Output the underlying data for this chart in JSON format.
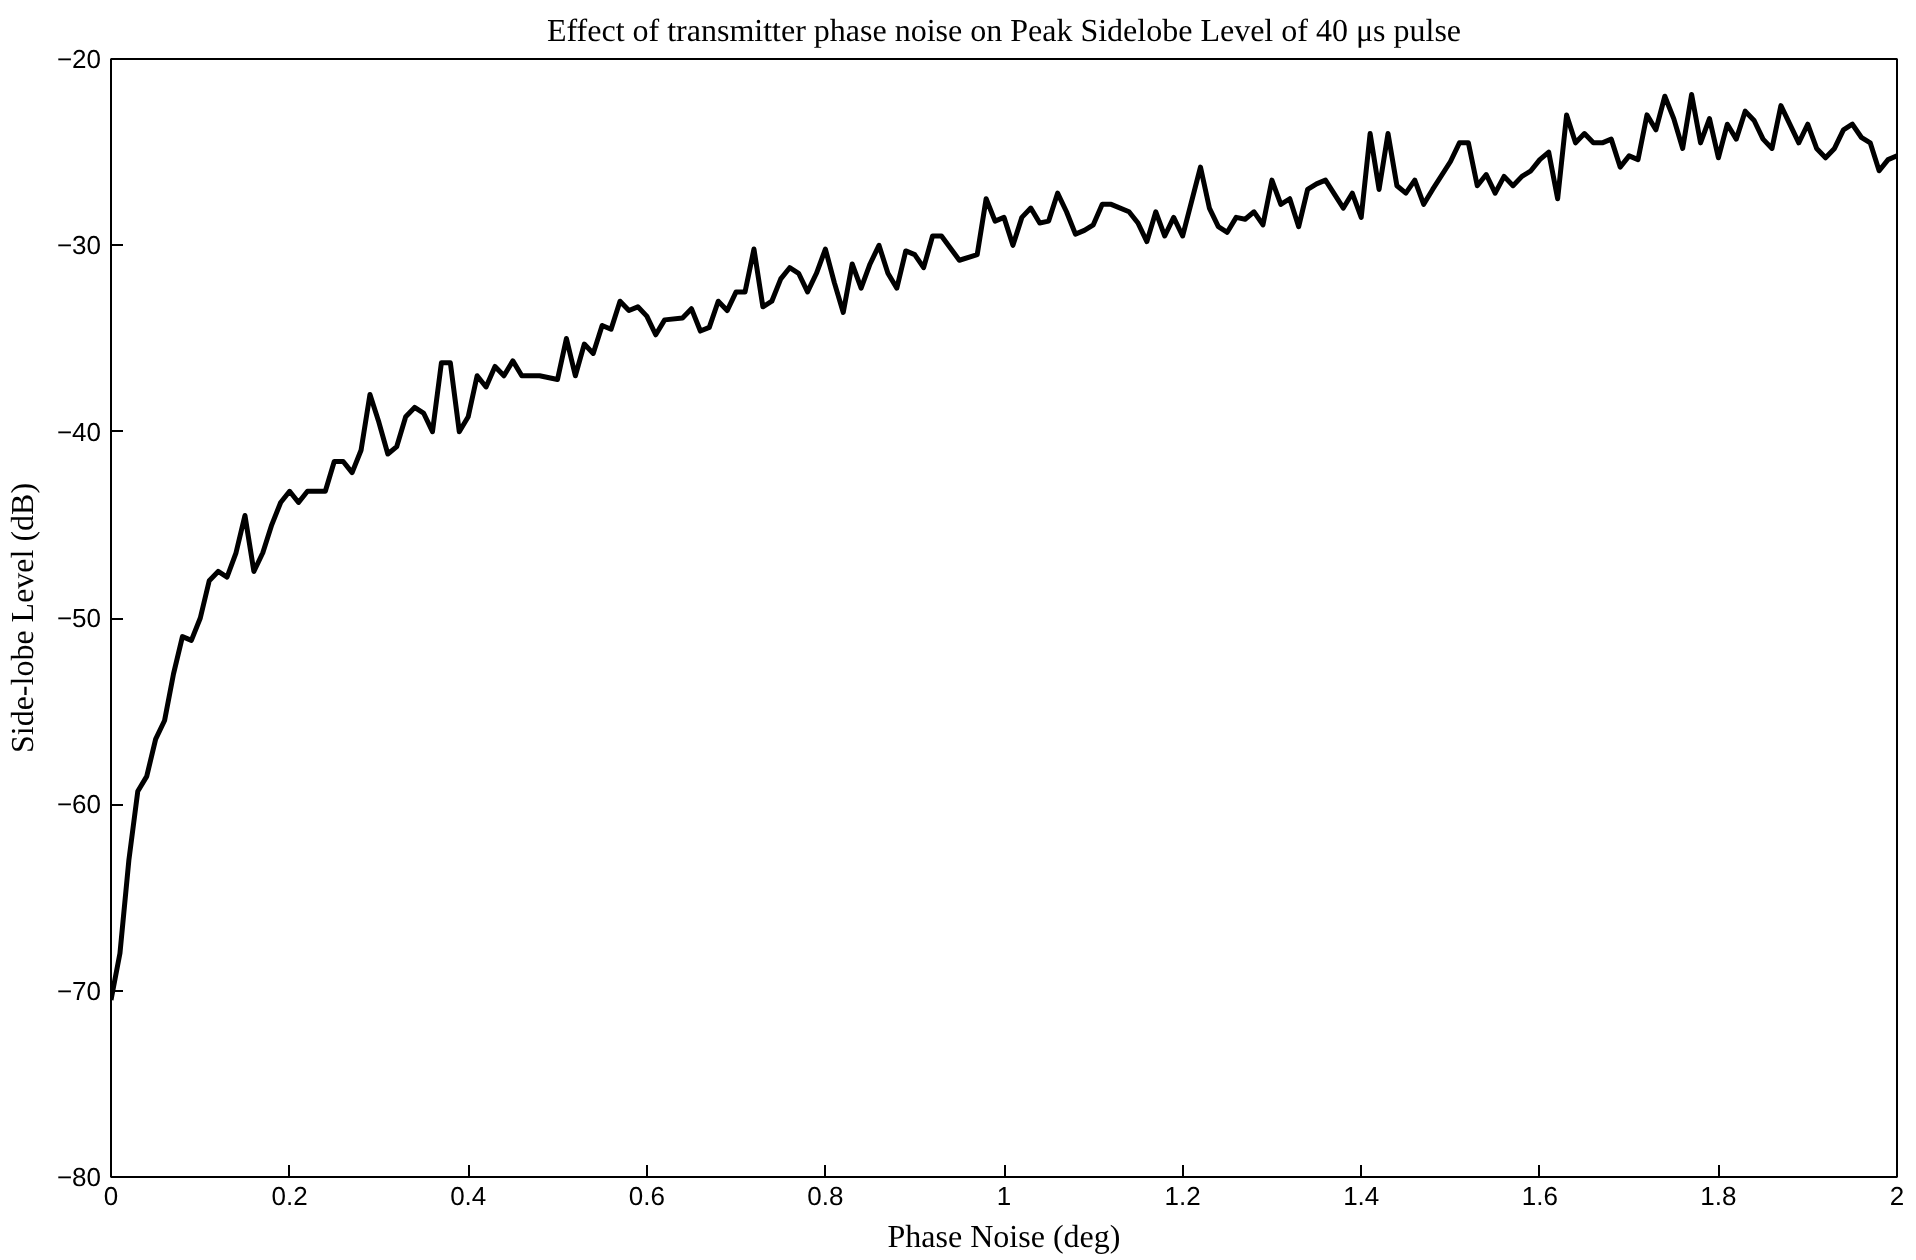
{
  "chart_data": {
    "type": "line",
    "title": "Effect of transmitter phase noise on Peak Sidelobe Level of 40 μs pulse",
    "xlabel": "Phase Noise (deg)",
    "ylabel": "Side-lobe Level (dB)",
    "xlim": [
      0,
      2
    ],
    "ylim": [
      -80,
      -20
    ],
    "xticks": [
      0,
      0.2,
      0.4,
      0.6,
      0.8,
      1,
      1.2,
      1.4,
      1.6,
      1.8,
      2
    ],
    "yticks": [
      -80,
      -70,
      -60,
      -50,
      -40,
      -30,
      -20
    ],
    "grid": false,
    "line_style": "solid",
    "series": [
      {
        "color": "#000000",
        "x": [
          0,
          0.01,
          0.02,
          0.03,
          0.04,
          0.05,
          0.06,
          0.07,
          0.08,
          0.09,
          0.1,
          0.11,
          0.12,
          0.13,
          0.14,
          0.15,
          0.16,
          0.17,
          0.18,
          0.19,
          0.2,
          0.21,
          0.22,
          0.24,
          0.25,
          0.26,
          0.27,
          0.28,
          0.29,
          0.3,
          0.31,
          0.32,
          0.33,
          0.34,
          0.35,
          0.36,
          0.37,
          0.38,
          0.39,
          0.4,
          0.41,
          0.42,
          0.43,
          0.44,
          0.45,
          0.46,
          0.48,
          0.5,
          0.51,
          0.52,
          0.53,
          0.54,
          0.55,
          0.56,
          0.57,
          0.58,
          0.59,
          0.6,
          0.61,
          0.62,
          0.64,
          0.65,
          0.66,
          0.67,
          0.68,
          0.69,
          0.7,
          0.71,
          0.72,
          0.73,
          0.74,
          0.75,
          0.76,
          0.77,
          0.78,
          0.79,
          0.8,
          0.81,
          0.82,
          0.83,
          0.84,
          0.85,
          0.86,
          0.87,
          0.88,
          0.89,
          0.9,
          0.91,
          0.92,
          0.93,
          0.95,
          0.97,
          0.98,
          0.99,
          1.0,
          1.01,
          1.02,
          1.03,
          1.04,
          1.05,
          1.06,
          1.07,
          1.08,
          1.09,
          1.1,
          1.11,
          1.12,
          1.14,
          1.15,
          1.16,
          1.17,
          1.18,
          1.19,
          1.2,
          1.22,
          1.23,
          1.24,
          1.25,
          1.26,
          1.27,
          1.28,
          1.29,
          1.3,
          1.31,
          1.32,
          1.33,
          1.34,
          1.35,
          1.36,
          1.38,
          1.39,
          1.4,
          1.41,
          1.42,
          1.43,
          1.44,
          1.45,
          1.46,
          1.47,
          1.48,
          1.5,
          1.51,
          1.52,
          1.53,
          1.54,
          1.55,
          1.56,
          1.57,
          1.58,
          1.59,
          1.6,
          1.61,
          1.62,
          1.63,
          1.64,
          1.65,
          1.66,
          1.67,
          1.68,
          1.69,
          1.7,
          1.71,
          1.72,
          1.73,
          1.74,
          1.75,
          1.76,
          1.77,
          1.78,
          1.79,
          1.8,
          1.81,
          1.82,
          1.83,
          1.84,
          1.85,
          1.86,
          1.87,
          1.89,
          1.9,
          1.91,
          1.92,
          1.93,
          1.94,
          1.95,
          1.96,
          1.97,
          1.98,
          1.99,
          2.0
        ],
        "values": [
          -70.5,
          -68,
          -63,
          -59.3,
          -58.5,
          -56.5,
          -55.5,
          -53,
          -51,
          -51.2,
          -50,
          -48,
          -47.5,
          -47.8,
          -46.5,
          -44.5,
          -47.5,
          -46.5,
          -45,
          -43.8,
          -43.2,
          -43.8,
          -43.2,
          -43.2,
          -41.6,
          -41.6,
          -42.2,
          -41,
          -38,
          -39.5,
          -41.2,
          -40.8,
          -39.2,
          -38.7,
          -39,
          -40,
          -36.3,
          -36.3,
          -40,
          -39.2,
          -37,
          -37.6,
          -36.5,
          -37,
          -36.2,
          -37,
          -37,
          -37.2,
          -35,
          -37,
          -35.3,
          -35.8,
          -34.3,
          -34.5,
          -33,
          -33.5,
          -33.3,
          -33.8,
          -34.8,
          -34,
          -33.9,
          -33.4,
          -34.6,
          -34.4,
          -33,
          -33.5,
          -32.5,
          -32.5,
          -30.2,
          -33.3,
          -33,
          -31.8,
          -31.2,
          -31.5,
          -32.5,
          -31.5,
          -30.2,
          -32,
          -33.6,
          -31,
          -32.3,
          -31,
          -30,
          -31.5,
          -32.3,
          -30.3,
          -30.5,
          -31.2,
          -29.5,
          -29.5,
          -30.8,
          -30.5,
          -27.5,
          -28.7,
          -28.5,
          -30,
          -28.5,
          -28,
          -28.8,
          -28.7,
          -27.2,
          -28.2,
          -29.4,
          -29.2,
          -28.9,
          -27.8,
          -27.8,
          -28.2,
          -28.8,
          -29.8,
          -28.2,
          -29.5,
          -28.5,
          -29.5,
          -25.8,
          -28,
          -29,
          -29.3,
          -28.5,
          -28.6,
          -28.2,
          -28.9,
          -26.5,
          -27.8,
          -27.5,
          -29,
          -27,
          -26.7,
          -26.5,
          -28,
          -27.2,
          -28.5,
          -24,
          -27,
          -24,
          -26.8,
          -27.2,
          -26.5,
          -27.8,
          -27,
          -25.5,
          -24.5,
          -24.5,
          -26.8,
          -26.2,
          -27.2,
          -26.3,
          -26.8,
          -26.3,
          -26,
          -25.4,
          -25,
          -27.5,
          -23,
          -24.5,
          -24,
          -24.5,
          -24.5,
          -24.3,
          -25.8,
          -25.2,
          -25.4,
          -23,
          -23.8,
          -22,
          -23.2,
          -24.8,
          -21.9,
          -24.5,
          -23.2,
          -25.3,
          -23.5,
          -24.3,
          -22.8,
          -23.3,
          -24.3,
          -24.8,
          -22.5,
          -24.5,
          -23.5,
          -24.8,
          -25.3,
          -24.8,
          -23.8,
          -23.5,
          -24.2,
          -24.5,
          -26,
          -25.4,
          -25.2
        ]
      }
    ]
  }
}
